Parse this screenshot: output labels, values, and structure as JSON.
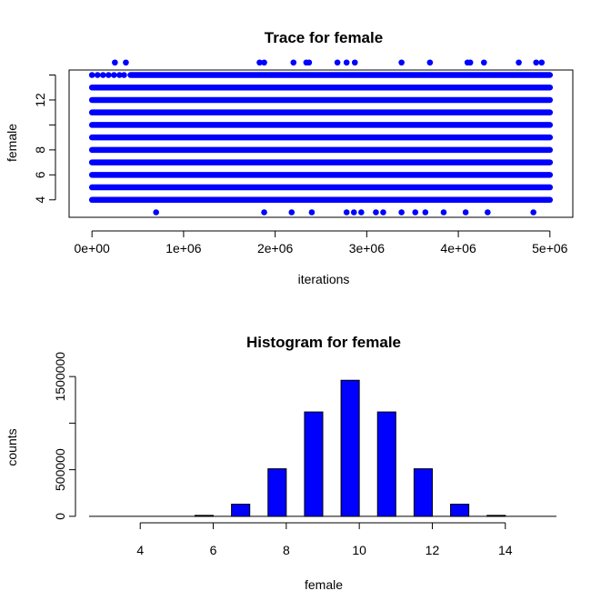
{
  "chart_data": [
    {
      "type": "scatter",
      "title": "Trace for  female",
      "xlabel": "iterations",
      "ylabel": "female",
      "xlim": [
        -250000,
        5250000
      ],
      "ylim": [
        2.6,
        14.4
      ],
      "x_ticks": [
        {
          "value": 0,
          "label": "0e+00"
        },
        {
          "value": 1000000,
          "label": "1e+06"
        },
        {
          "value": 2000000,
          "label": "2e+06"
        },
        {
          "value": 3000000,
          "label": "3e+06"
        },
        {
          "value": 4000000,
          "label": "4e+06"
        },
        {
          "value": 5000000,
          "label": "5e+06"
        }
      ],
      "y_ticks": [
        {
          "value": 4,
          "label": "4"
        },
        {
          "value": 6,
          "label": "6"
        },
        {
          "value": 8,
          "label": "8"
        },
        {
          "value": 12,
          "label": "12"
        }
      ],
      "y_minor_ticks": [
        10,
        14
      ],
      "marker_color": "#0000ff",
      "dense_rows": [
        {
          "y": 4,
          "from": 0,
          "to": 5000000
        },
        {
          "y": 5,
          "from": 0,
          "to": 5000000
        },
        {
          "y": 6,
          "from": 0,
          "to": 5000000
        },
        {
          "y": 7,
          "from": 0,
          "to": 5000000
        },
        {
          "y": 8,
          "from": 0,
          "to": 5000000
        },
        {
          "y": 9,
          "from": 0,
          "to": 5000000
        },
        {
          "y": 10,
          "from": 0,
          "to": 5000000
        },
        {
          "y": 11,
          "from": 0,
          "to": 5000000
        },
        {
          "y": 12,
          "from": 0,
          "to": 5000000
        },
        {
          "y": 13,
          "from": 0,
          "to": 5000000
        },
        {
          "y": 14,
          "from": 420000,
          "to": 5000000
        }
      ],
      "points_14": [
        0,
        60000,
        120000,
        180000,
        240000,
        300000,
        350000
      ],
      "points_3": [
        700000,
        1880000,
        2180000,
        2400000,
        2780000,
        2860000,
        2940000,
        3100000,
        3180000,
        3380000,
        3530000,
        3640000,
        3840000,
        4080000,
        4320000,
        4820000
      ],
      "points_15": [
        250000,
        370000,
        1830000,
        1880000,
        2200000,
        2340000,
        2370000,
        2680000,
        2780000,
        2870000,
        3380000,
        3690000,
        4100000,
        4130000,
        4280000,
        4660000,
        4850000,
        4910000
      ]
    },
    {
      "type": "bar",
      "title": "Histogram for  female",
      "xlabel": "female",
      "ylabel": "counts",
      "xlim": [
        2.6,
        15.4
      ],
      "ylim": [
        -60000,
        1560000
      ],
      "bar_color": "#0000ff",
      "bar_width": 0.5,
      "categories": [
        3,
        4,
        5,
        6,
        7,
        8,
        9,
        10,
        11,
        12,
        13,
        14
      ],
      "values": [
        0,
        0,
        10000,
        130000,
        510000,
        1120000,
        1460000,
        1120000,
        510000,
        130000,
        10000,
        0
      ],
      "x_ticks": [
        {
          "value": 4,
          "label": "4"
        },
        {
          "value": 6,
          "label": "6"
        },
        {
          "value": 8,
          "label": "8"
        },
        {
          "value": 10,
          "label": "10"
        },
        {
          "value": 12,
          "label": "12"
        },
        {
          "value": 14,
          "label": "14"
        }
      ],
      "y_ticks": [
        {
          "value": 0,
          "label": "0"
        },
        {
          "value": 500000,
          "label": "500000"
        },
        {
          "value": 1500000,
          "label": "1500000"
        }
      ],
      "y_minor_ticks": [
        1000000
      ]
    }
  ]
}
